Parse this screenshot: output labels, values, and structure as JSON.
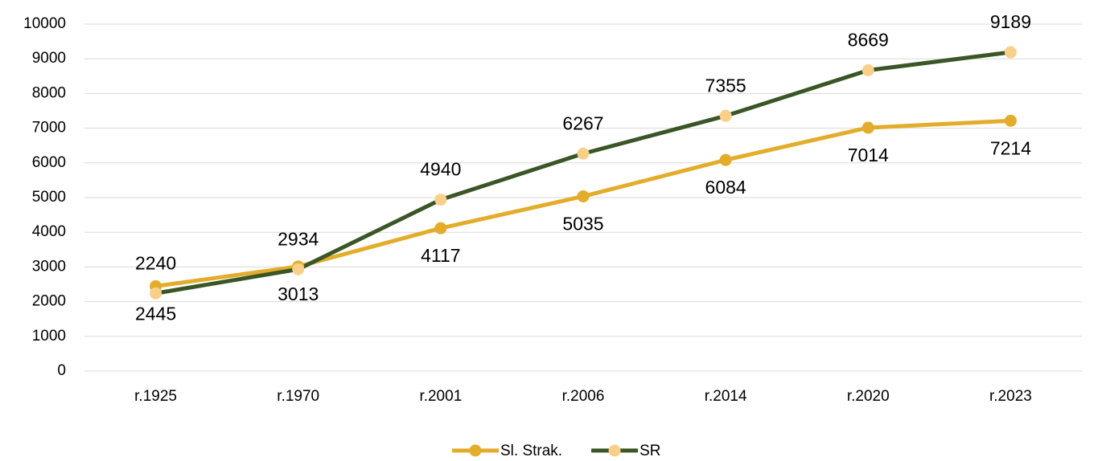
{
  "chart_data": {
    "type": "line",
    "categories": [
      "r.1925",
      "r.1970",
      "r.2001",
      "r.2006",
      "r.2014",
      "r.2020",
      "r.2023"
    ],
    "series": [
      {
        "name": "Sl. Strak.",
        "color": "#e3ac2a",
        "marker_color": "#e3ac2a",
        "label_position": "below",
        "values": [
          2445,
          3013,
          4117,
          5035,
          6084,
          7014,
          7214
        ]
      },
      {
        "name": "SR",
        "color": "#3a5626",
        "marker_color": "#f9d08a",
        "label_position": "above",
        "values": [
          2240,
          2934,
          4940,
          6267,
          7355,
          8669,
          9189
        ]
      }
    ],
    "ylim": [
      0,
      10000
    ],
    "yticks": [
      0,
      1000,
      2000,
      3000,
      4000,
      5000,
      6000,
      7000,
      8000,
      9000,
      10000
    ],
    "grid": true,
    "legend": "bottom"
  }
}
